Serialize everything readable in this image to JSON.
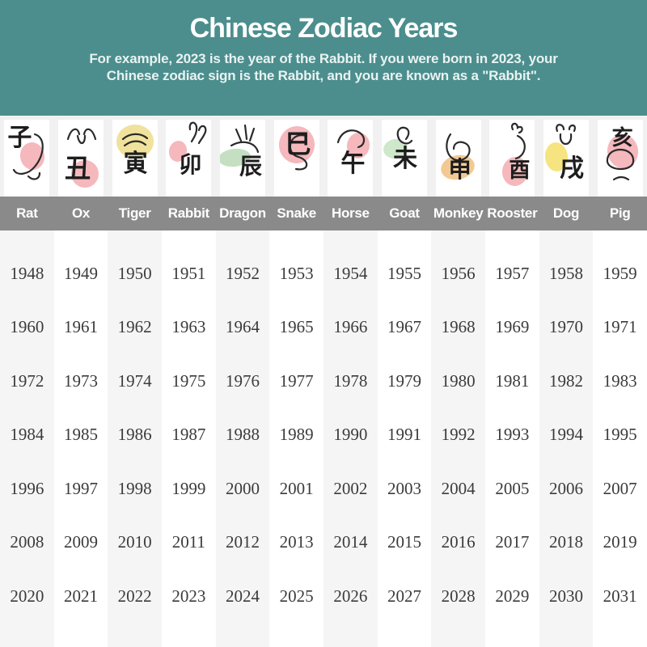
{
  "header": {
    "title": "Chinese Zodiac Years",
    "subtitle_line1": "For example, 2023 is the year of the Rabbit. If you were born in 2023, your",
    "subtitle_line2": "Chinese zodiac sign is the Rabbit, and you are known as a \"Rabbit\".",
    "bg_color": "#4b8e8d"
  },
  "colors": {
    "name_bar": "#8a8a8a",
    "column_stripe": "#f5f5f5",
    "icon_band": "#f1f1f1",
    "year_text": "#3b3b3b"
  },
  "table": {
    "columns": [
      {
        "name": "Rat",
        "character": "子",
        "blob_color": "#f5b8bd",
        "years": [
          1948,
          1960,
          1972,
          1984,
          1996,
          2008,
          2020
        ]
      },
      {
        "name": "Ox",
        "character": "丑",
        "blob_color": "#f5b8bd",
        "years": [
          1949,
          1961,
          1973,
          1985,
          1997,
          2009,
          2021
        ]
      },
      {
        "name": "Tiger",
        "character": "寅",
        "blob_color": "#f0e29c",
        "years": [
          1950,
          1962,
          1974,
          1986,
          1998,
          2010,
          2022
        ]
      },
      {
        "name": "Rabbit",
        "character": "卯",
        "blob_color": "#f5b8bd",
        "years": [
          1951,
          1963,
          1975,
          1987,
          1999,
          2011,
          2023
        ]
      },
      {
        "name": "Dragon",
        "character": "辰",
        "blob_color": "#c5dfc2",
        "years": [
          1952,
          1964,
          1976,
          1988,
          2000,
          2012,
          2024
        ]
      },
      {
        "name": "Snake",
        "character": "巳",
        "blob_color": "#f5b8bd",
        "years": [
          1953,
          1965,
          1977,
          1989,
          2001,
          2013,
          2025
        ]
      },
      {
        "name": "Horse",
        "character": "午",
        "blob_color": "#f5b8bd",
        "years": [
          1954,
          1966,
          1978,
          1990,
          2002,
          2014,
          2026
        ]
      },
      {
        "name": "Goat",
        "character": "未",
        "blob_color": "#cfe7cb",
        "years": [
          1955,
          1967,
          1979,
          1991,
          2003,
          2015,
          2027
        ]
      },
      {
        "name": "Monkey",
        "character": "申",
        "blob_color": "#f3c993",
        "years": [
          1956,
          1968,
          1980,
          1992,
          2004,
          2016,
          2028
        ]
      },
      {
        "name": "Rooster",
        "character": "酉",
        "blob_color": "#f5b8bd",
        "years": [
          1957,
          1969,
          1981,
          1993,
          2005,
          2017,
          2029
        ]
      },
      {
        "name": "Dog",
        "character": "戌",
        "blob_color": "#f5e47f",
        "years": [
          1958,
          1970,
          1982,
          1994,
          2006,
          2018,
          2030
        ]
      },
      {
        "name": "Pig",
        "character": "亥",
        "blob_color": "#f5b8bd",
        "years": [
          1959,
          1971,
          1983,
          1995,
          2007,
          2019,
          2031
        ]
      }
    ]
  },
  "chart_data": {
    "type": "table",
    "title": "Chinese Zodiac Years",
    "subtitle": "For example, 2023 is the year of the Rabbit. If you were born in 2023, your Chinese zodiac sign is the Rabbit, and you are known as a \"Rabbit\".",
    "columns": [
      "Rat",
      "Ox",
      "Tiger",
      "Rabbit",
      "Dragon",
      "Snake",
      "Horse",
      "Goat",
      "Monkey",
      "Rooster",
      "Dog",
      "Pig"
    ],
    "rows": [
      [
        1948,
        1949,
        1950,
        1951,
        1952,
        1953,
        1954,
        1955,
        1956,
        1957,
        1958,
        1959
      ],
      [
        1960,
        1961,
        1962,
        1963,
        1964,
        1965,
        1966,
        1967,
        1968,
        1969,
        1970,
        1971
      ],
      [
        1972,
        1973,
        1974,
        1975,
        1976,
        1977,
        1978,
        1979,
        1980,
        1981,
        1982,
        1983
      ],
      [
        1984,
        1985,
        1986,
        1987,
        1988,
        1989,
        1990,
        1991,
        1992,
        1993,
        1994,
        1995
      ],
      [
        1996,
        1997,
        1998,
        1999,
        2000,
        2001,
        2002,
        2003,
        2004,
        2005,
        2006,
        2007
      ],
      [
        2008,
        2009,
        2010,
        2011,
        2012,
        2013,
        2014,
        2015,
        2016,
        2017,
        2018,
        2019
      ],
      [
        2020,
        2021,
        2022,
        2023,
        2024,
        2025,
        2026,
        2027,
        2028,
        2029,
        2030,
        2031
      ]
    ]
  }
}
